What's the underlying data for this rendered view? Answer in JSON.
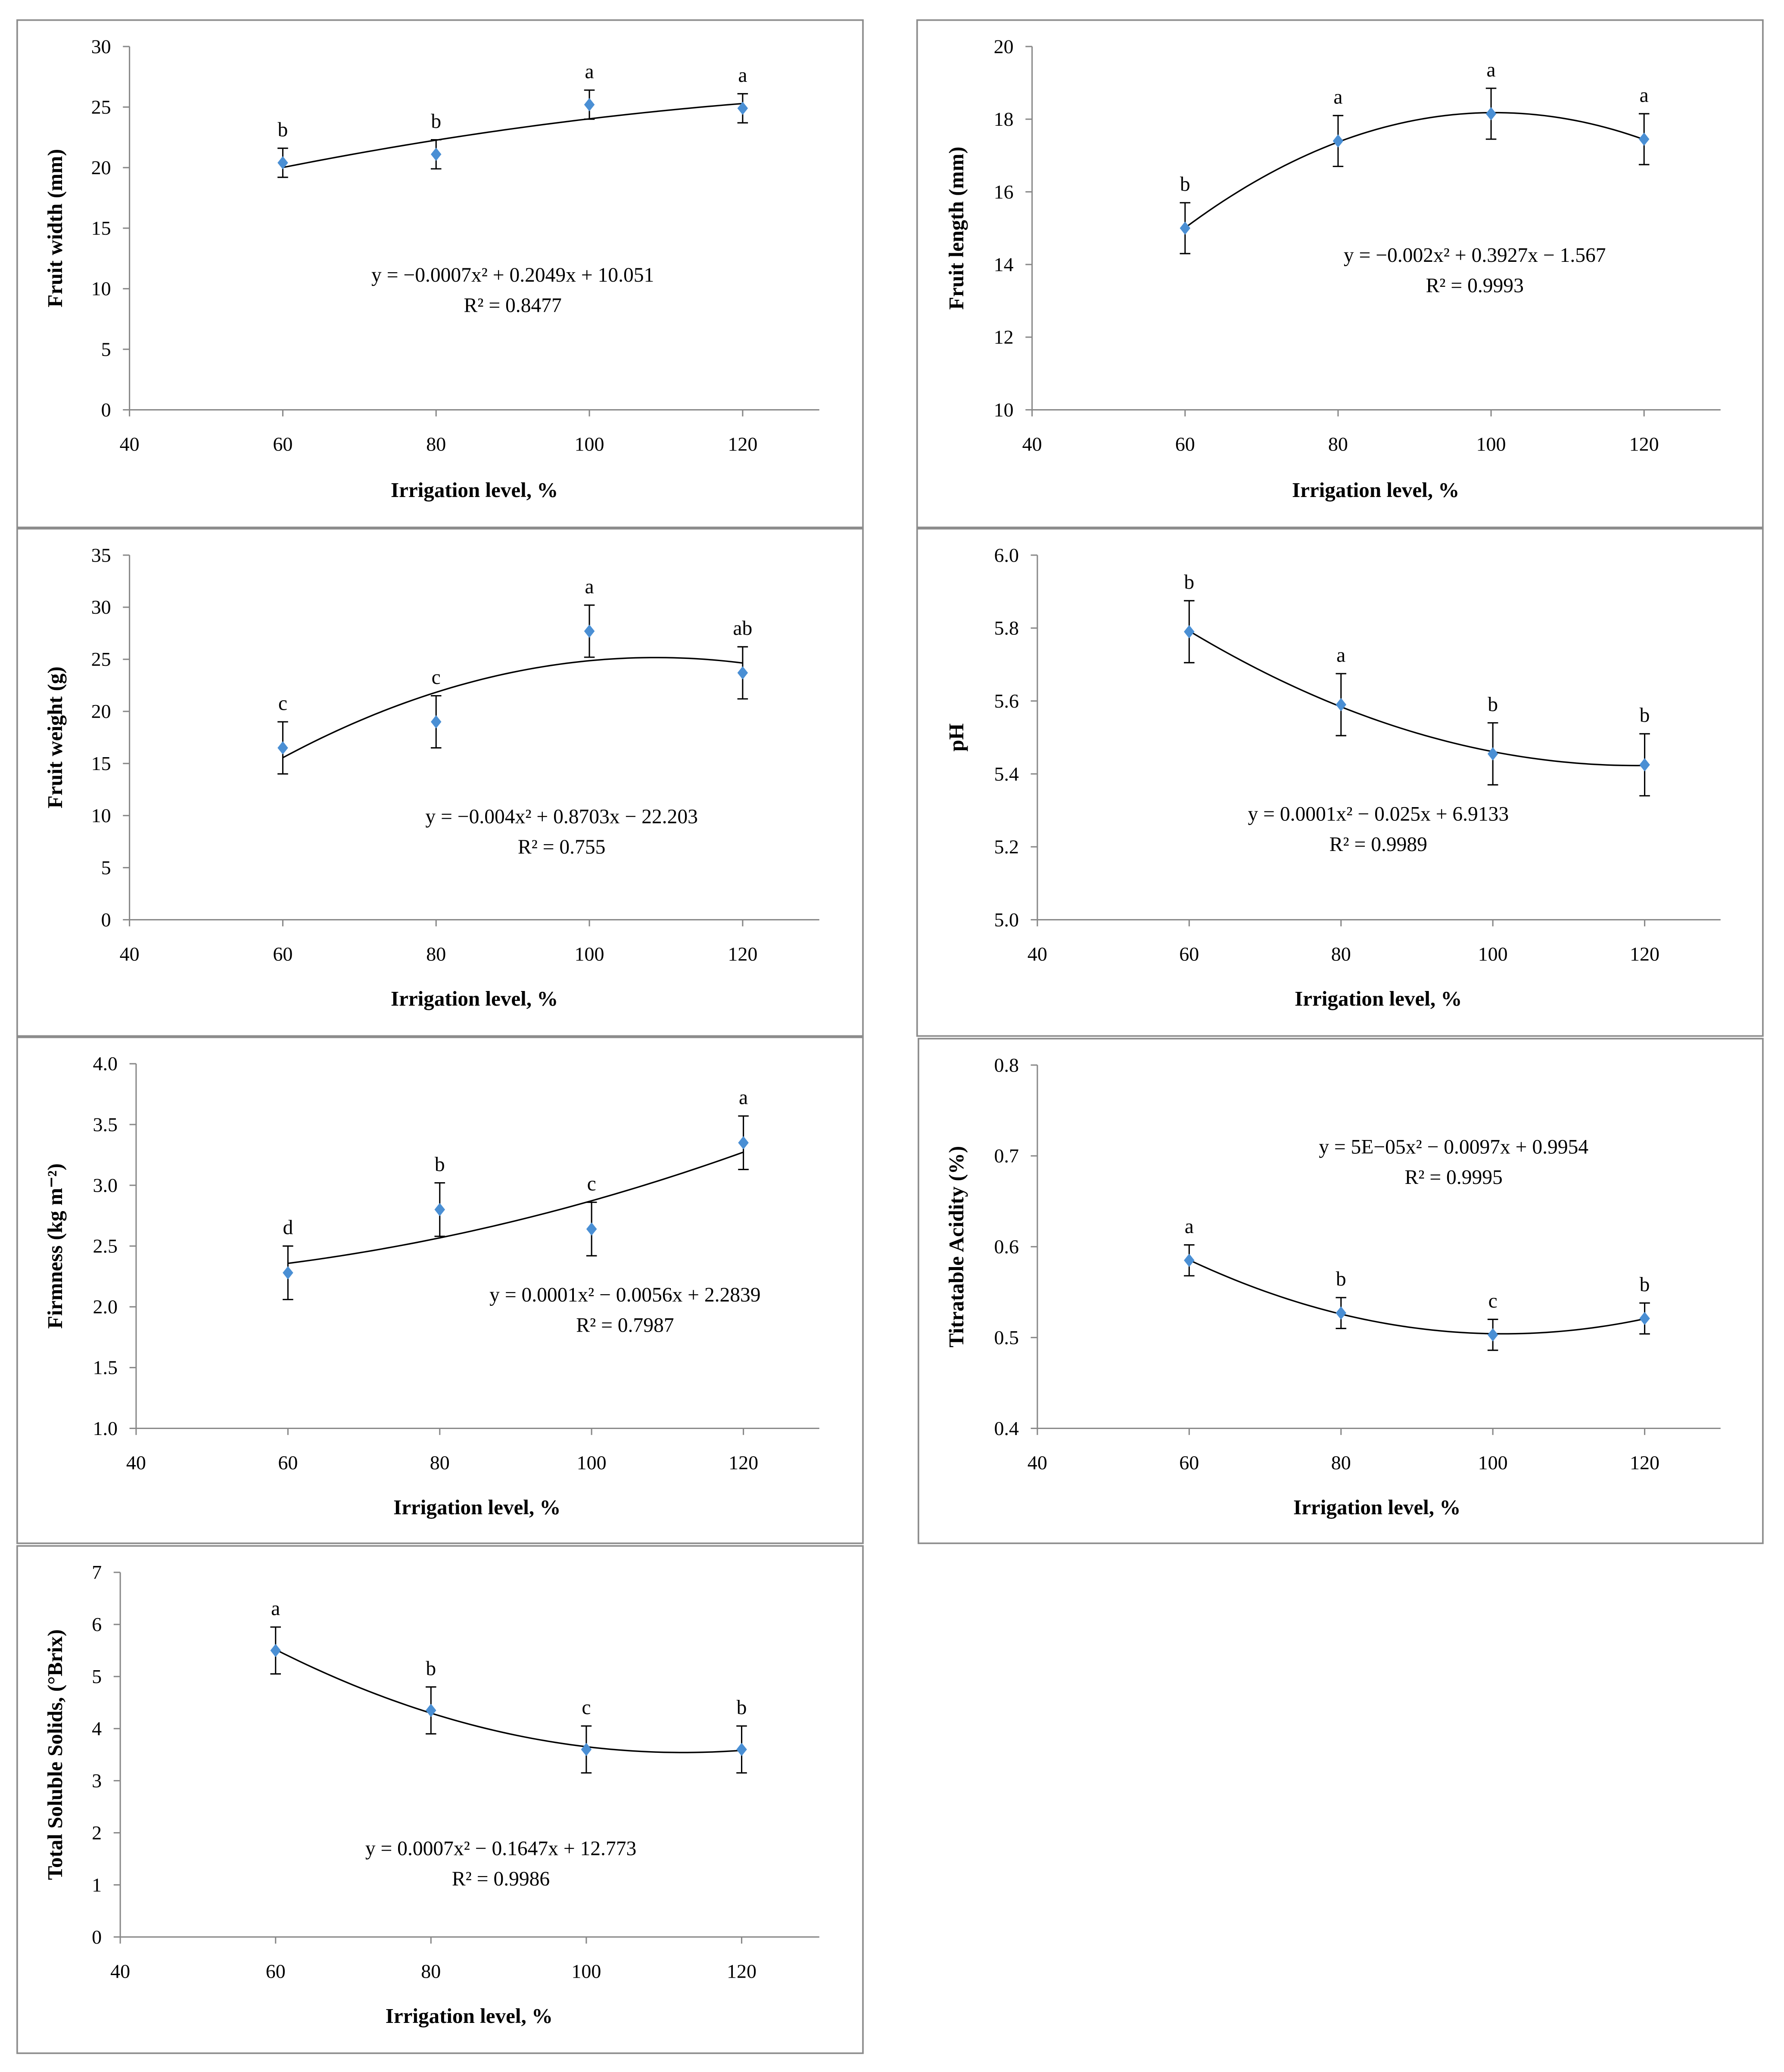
{
  "colors": {
    "marker": "#4a8fd4",
    "axis": "#888888",
    "border": "#8c8c8c",
    "line": "#000000"
  },
  "chart_data": [
    {
      "type": "scatter",
      "title": "",
      "xlabel": "Irrigation level, %",
      "ylabel": "Fruit width (mm)",
      "x": [
        60,
        80,
        100,
        120
      ],
      "values": [
        20.4,
        21.1,
        25.2,
        24.9
      ],
      "error": [
        1.2,
        1.2,
        1.2,
        1.2
      ],
      "letters": [
        "b",
        "b",
        "a",
        "a"
      ],
      "xlim": [
        40,
        130
      ],
      "ylim": [
        0,
        30
      ],
      "xticks": [
        "40",
        "60",
        "80",
        "100",
        "120"
      ],
      "yticks": [
        "0",
        "5",
        "10",
        "15",
        "20",
        "25",
        "30"
      ],
      "trendline": "polynomial order 2",
      "equation": "y = −0.0007x² + 0.2049x + 10.051",
      "r2": "R² = 0.8477"
    },
    {
      "type": "scatter",
      "title": "",
      "xlabel": "Irrigation level, %",
      "ylabel": "Fruit length (mm)",
      "x": [
        60,
        80,
        100,
        120
      ],
      "values": [
        15.0,
        17.4,
        18.15,
        17.45
      ],
      "error": [
        0.7,
        0.7,
        0.7,
        0.7
      ],
      "letters": [
        "b",
        "a",
        "a",
        "a"
      ],
      "xlim": [
        40,
        130
      ],
      "ylim": [
        10,
        20
      ],
      "xticks": [
        "40",
        "60",
        "80",
        "100",
        "120"
      ],
      "yticks": [
        "10",
        "12",
        "14",
        "16",
        "18",
        "20"
      ],
      "trendline": "polynomial order 2",
      "equation": "y = −0.002x² + 0.3927x − 1.567",
      "r2": "R² = 0.9993"
    },
    {
      "type": "scatter",
      "title": "",
      "xlabel": "Irrigation level, %",
      "ylabel": "Fruit weight (g)",
      "x": [
        60,
        80,
        100,
        120
      ],
      "values": [
        16.5,
        19.0,
        27.7,
        23.7
      ],
      "error": [
        2.5,
        2.5,
        2.5,
        2.5
      ],
      "letters": [
        "c",
        "c",
        "a",
        "ab"
      ],
      "xlim": [
        40,
        130
      ],
      "ylim": [
        0,
        35
      ],
      "xticks": [
        "40",
        "60",
        "80",
        "100",
        "120"
      ],
      "yticks": [
        "0",
        "5",
        "10",
        "15",
        "20",
        "25",
        "30",
        "35"
      ],
      "trendline": "polynomial order 2",
      "equation": "y = −0.004x² + 0.8703x − 22.203",
      "r2": "R² = 0.755"
    },
    {
      "type": "scatter",
      "title": "",
      "xlabel": "Irrigation level, %",
      "ylabel": "pH",
      "x": [
        60,
        80,
        100,
        120
      ],
      "values": [
        5.79,
        5.59,
        5.455,
        5.425
      ],
      "error": [
        0.085,
        0.085,
        0.085,
        0.085
      ],
      "letters": [
        "b",
        "a",
        "b",
        "b"
      ],
      "xlim": [
        40,
        130
      ],
      "ylim": [
        5.0,
        6.0
      ],
      "xticks": [
        "40",
        "60",
        "80",
        "100",
        "120"
      ],
      "yticks": [
        "5.0",
        "5.2",
        "5.4",
        "5.6",
        "5.8",
        "6.0"
      ],
      "trendline": "polynomial order 2",
      "equation": "y = 0.0001x² − 0.025x + 6.9133",
      "r2": "R² = 0.9989"
    },
    {
      "type": "scatter",
      "title": "",
      "xlabel": "Irrigation level, %",
      "ylabel": "Firmness (kg m⁻²)",
      "x": [
        60,
        80,
        100,
        120
      ],
      "values": [
        2.28,
        2.8,
        2.64,
        3.35
      ],
      "error": [
        0.22,
        0.22,
        0.22,
        0.22
      ],
      "letters": [
        "d",
        "b",
        "c",
        "a"
      ],
      "xlim": [
        40,
        130
      ],
      "ylim": [
        1.0,
        4.0
      ],
      "xticks": [
        "40",
        "60",
        "80",
        "100",
        "120"
      ],
      "yticks": [
        "1.0",
        "1.5",
        "2.0",
        "2.5",
        "3.0",
        "3.5",
        "4.0"
      ],
      "trendline": "polynomial order 2",
      "equation": "y = 0.0001x² − 0.0056x + 2.2839",
      "r2": "R² = 0.7987"
    },
    {
      "type": "scatter",
      "title": "",
      "xlabel": "Irrigation level, %",
      "ylabel": "Titratable Acidity (%)",
      "x": [
        60,
        80,
        100,
        120
      ],
      "values": [
        0.585,
        0.527,
        0.503,
        0.521
      ],
      "error": [
        0.017,
        0.017,
        0.017,
        0.017
      ],
      "letters": [
        "a",
        "b",
        "c",
        "b"
      ],
      "xlim": [
        40,
        130
      ],
      "ylim": [
        0.4,
        0.8
      ],
      "xticks": [
        "40",
        "60",
        "80",
        "100",
        "120"
      ],
      "yticks": [
        "0.4",
        "0.5",
        "0.6",
        "0.7",
        "0.8"
      ],
      "trendline": "polynomial order 2",
      "equation": "y = 5E−05x² − 0.0097x + 0.9954",
      "r2": "R² = 0.9995"
    },
    {
      "type": "scatter",
      "title": "",
      "xlabel": "Irrigation level, %",
      "ylabel": "Total Soluble Solids, (°Brix)",
      "x": [
        60,
        80,
        100,
        120
      ],
      "values": [
        5.5,
        4.35,
        3.6,
        3.6
      ],
      "error": [
        0.45,
        0.45,
        0.45,
        0.45
      ],
      "letters": [
        "a",
        "b",
        "c",
        "b"
      ],
      "xlim": [
        40,
        130
      ],
      "ylim": [
        0,
        7
      ],
      "xticks": [
        "40",
        "60",
        "80",
        "100",
        "120"
      ],
      "yticks": [
        "0",
        "1",
        "2",
        "3",
        "4",
        "5",
        "6",
        "7"
      ],
      "trendline": "polynomial order 2",
      "equation": "y = 0.0007x² − 0.1647x + 12.773",
      "r2": "R² = 0.9986"
    }
  ]
}
